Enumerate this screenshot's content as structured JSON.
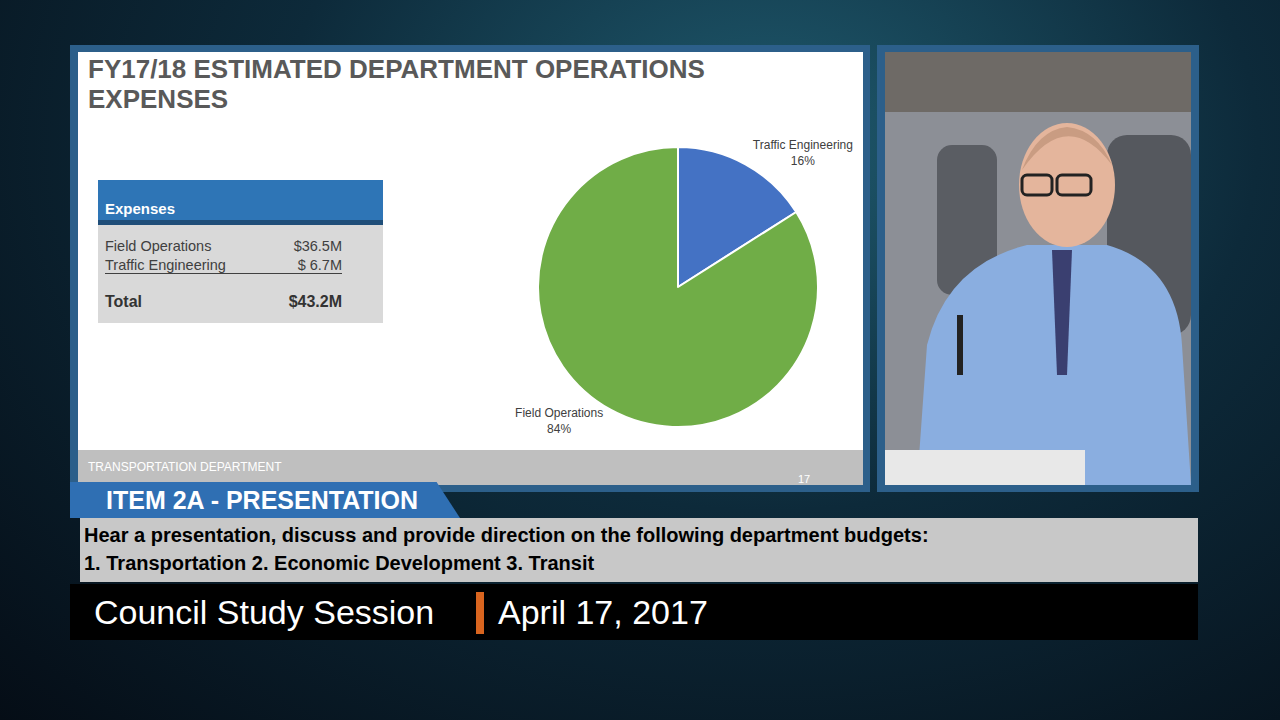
{
  "chart_data": {
    "type": "pie",
    "title": "FY17/18 ESTIMATED DEPARTMENT OPERATIONS EXPENSES",
    "categories": [
      "Traffic Engineering",
      "Field Operations"
    ],
    "values": [
      16,
      84
    ],
    "value_labels": [
      "16%",
      "84%"
    ],
    "colors": [
      "#4472c4",
      "#70ad47"
    ],
    "data_labels": true
  },
  "table": {
    "header": "Expenses",
    "rows": [
      [
        "Field Operations",
        "$36.5M"
      ],
      [
        "Traffic Engineering",
        "$ 6.7M"
      ],
      [
        "Total",
        "$43.2M"
      ]
    ]
  },
  "slide_footer": {
    "text": "TRANSPORTATION DEPARTMENT",
    "page": 17
  },
  "overlay": {
    "item": "ITEM 2A - PRESENTATION",
    "description": [
      "Hear a presentation, discuss and provide direction on the following department budgets:",
      "1. Transportation 2. Economic Development 3. Transit"
    ],
    "meeting": "Council Study Session",
    "date": "April 17, 2017"
  }
}
